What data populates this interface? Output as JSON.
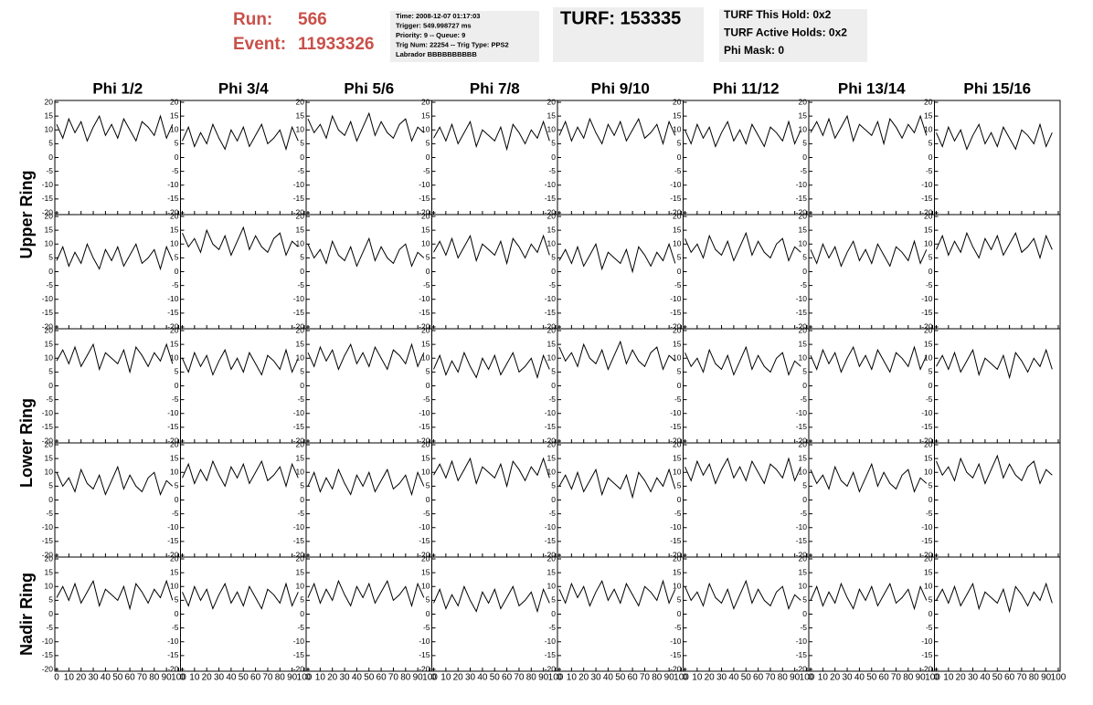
{
  "header": {
    "run_label": "Run:",
    "run": "566",
    "event_label": "Event:",
    "event": "11933326",
    "info": [
      "Time: 2008-12-07 01:17:03",
      "Trigger: 549.998727 ms",
      "Priority: 9 -- Queue: 9",
      "Trig Num: 22254 -- Trig Type: PPS2",
      "Labrador BBBBBBBBBB"
    ],
    "turf": "TURF: 153335",
    "turf_info": [
      "TURF This Hold: 0x2",
      "TURF Active Holds: 0x2",
      "Phi Mask: 0"
    ]
  },
  "chart_data": {
    "type": "line",
    "color": "#000000",
    "columns": [
      "Phi 1/2",
      "Phi 3/4",
      "Phi 5/6",
      "Phi 7/8",
      "Phi 9/10",
      "Phi 11/12",
      "Phi 13/14",
      "Phi 15/16"
    ],
    "row_labels": [
      "Upper Ring",
      "Lower Ring",
      "Nadir Ring"
    ],
    "xlim": [
      0,
      100
    ],
    "ylim": [
      -20,
      20
    ],
    "xticks": [
      0,
      10,
      20,
      30,
      40,
      50,
      60,
      70,
      80,
      90,
      100
    ],
    "yticks": [
      -20,
      -15,
      -10,
      -5,
      0,
      5,
      10,
      15,
      20
    ],
    "x": [
      0,
      5,
      10,
      15,
      20,
      25,
      30,
      35,
      40,
      45,
      50,
      55,
      60,
      65,
      70,
      75,
      80,
      85,
      90,
      95
    ],
    "panels": [
      [
        12,
        7,
        14,
        9,
        13,
        6,
        11,
        15,
        8,
        12,
        7,
        14,
        10,
        6,
        13,
        11,
        8,
        15,
        7,
        12
      ],
      [
        6,
        11,
        4,
        9,
        5,
        12,
        7,
        3,
        10,
        6,
        11,
        4,
        8,
        12,
        5,
        7,
        10,
        3,
        11,
        6
      ],
      [
        14,
        9,
        12,
        7,
        15,
        10,
        8,
        13,
        6,
        11,
        16,
        8,
        13,
        9,
        7,
        12,
        14,
        6,
        11,
        9
      ],
      [
        7,
        11,
        6,
        12,
        5,
        9,
        13,
        4,
        10,
        8,
        6,
        11,
        3,
        12,
        9,
        5,
        10,
        7,
        13,
        6
      ],
      [
        8,
        13,
        6,
        11,
        7,
        14,
        9,
        5,
        12,
        8,
        13,
        6,
        10,
        14,
        7,
        9,
        12,
        5,
        13,
        8
      ],
      [
        10,
        5,
        12,
        7,
        11,
        4,
        9,
        13,
        6,
        10,
        5,
        12,
        8,
        4,
        11,
        9,
        6,
        13,
        5,
        10
      ],
      [
        9,
        13,
        8,
        14,
        7,
        11,
        15,
        6,
        12,
        10,
        8,
        13,
        5,
        14,
        11,
        7,
        12,
        9,
        15,
        8
      ],
      [
        9,
        4,
        11,
        6,
        10,
        3,
        8,
        12,
        5,
        9,
        4,
        11,
        7,
        3,
        10,
        8,
        5,
        12,
        4,
        9
      ],
      [
        4,
        9,
        2,
        7,
        3,
        10,
        5,
        1,
        8,
        4,
        9,
        2,
        6,
        10,
        3,
        5,
        8,
        1,
        9,
        4
      ],
      [
        14,
        9,
        12,
        7,
        15,
        10,
        8,
        13,
        6,
        11,
        16,
        8,
        13,
        9,
        7,
        12,
        14,
        6,
        11,
        9
      ],
      [
        10,
        5,
        8,
        3,
        11,
        6,
        4,
        9,
        2,
        7,
        12,
        4,
        9,
        5,
        3,
        8,
        10,
        2,
        7,
        5
      ],
      [
        7,
        11,
        6,
        12,
        5,
        9,
        13,
        4,
        10,
        8,
        6,
        11,
        3,
        12,
        9,
        5,
        10,
        7,
        13,
        6
      ],
      [
        4,
        8,
        3,
        9,
        2,
        6,
        10,
        1,
        7,
        5,
        3,
        8,
        0,
        9,
        6,
        2,
        7,
        4,
        10,
        3
      ],
      [
        12,
        7,
        10,
        5,
        13,
        8,
        6,
        11,
        4,
        9,
        14,
        6,
        11,
        7,
        5,
        10,
        12,
        4,
        9,
        7
      ],
      [
        8,
        3,
        10,
        5,
        9,
        2,
        7,
        11,
        4,
        8,
        3,
        10,
        6,
        2,
        9,
        7,
        4,
        11,
        3,
        8
      ],
      [
        8,
        13,
        6,
        11,
        7,
        14,
        9,
        5,
        12,
        8,
        13,
        6,
        10,
        14,
        7,
        9,
        12,
        5,
        13,
        8
      ],
      [
        9,
        13,
        8,
        14,
        7,
        11,
        15,
        6,
        12,
        10,
        8,
        13,
        5,
        14,
        11,
        7,
        12,
        9,
        15,
        8
      ],
      [
        10,
        5,
        12,
        7,
        11,
        4,
        9,
        13,
        6,
        10,
        5,
        12,
        8,
        4,
        11,
        9,
        6,
        13,
        5,
        10
      ],
      [
        12,
        7,
        14,
        9,
        13,
        6,
        11,
        15,
        8,
        12,
        7,
        14,
        10,
        6,
        13,
        11,
        8,
        15,
        7,
        12
      ],
      [
        6,
        11,
        4,
        9,
        5,
        12,
        7,
        3,
        10,
        6,
        11,
        4,
        8,
        12,
        5,
        7,
        10,
        3,
        11,
        6
      ],
      [
        14,
        9,
        12,
        7,
        15,
        10,
        8,
        13,
        6,
        11,
        16,
        8,
        13,
        9,
        7,
        12,
        14,
        6,
        11,
        9
      ],
      [
        12,
        7,
        10,
        5,
        13,
        8,
        6,
        11,
        4,
        9,
        14,
        6,
        11,
        7,
        5,
        10,
        12,
        4,
        9,
        7
      ],
      [
        11,
        6,
        13,
        8,
        12,
        5,
        10,
        14,
        7,
        11,
        6,
        13,
        9,
        5,
        12,
        10,
        7,
        14,
        6,
        11
      ],
      [
        7,
        11,
        6,
        12,
        5,
        9,
        13,
        4,
        10,
        8,
        6,
        11,
        3,
        12,
        9,
        5,
        10,
        7,
        13,
        6
      ],
      [
        10,
        5,
        8,
        3,
        11,
        6,
        4,
        9,
        2,
        7,
        12,
        4,
        9,
        5,
        3,
        8,
        10,
        2,
        7,
        5
      ],
      [
        8,
        13,
        6,
        11,
        7,
        14,
        9,
        5,
        12,
        8,
        13,
        6,
        10,
        14,
        7,
        9,
        12,
        5,
        13,
        8
      ],
      [
        5,
        10,
        3,
        8,
        4,
        11,
        6,
        2,
        9,
        5,
        10,
        3,
        7,
        11,
        4,
        6,
        9,
        2,
        10,
        5
      ],
      [
        9,
        13,
        8,
        14,
        7,
        11,
        15,
        6,
        12,
        10,
        8,
        13,
        5,
        14,
        11,
        7,
        12,
        9,
        15,
        8
      ],
      [
        5,
        9,
        4,
        10,
        3,
        7,
        11,
        2,
        8,
        6,
        4,
        9,
        1,
        10,
        7,
        3,
        8,
        5,
        11,
        4
      ],
      [
        12,
        7,
        14,
        9,
        13,
        6,
        11,
        15,
        8,
        12,
        7,
        14,
        10,
        6,
        13,
        11,
        8,
        15,
        7,
        12
      ],
      [
        11,
        6,
        9,
        4,
        12,
        7,
        5,
        10,
        3,
        8,
        13,
        5,
        10,
        6,
        4,
        9,
        11,
        3,
        8,
        6
      ],
      [
        14,
        9,
        12,
        7,
        15,
        10,
        8,
        13,
        6,
        11,
        16,
        8,
        13,
        9,
        7,
        12,
        14,
        6,
        11,
        9
      ],
      [
        6,
        10,
        5,
        11,
        4,
        8,
        12,
        3,
        9,
        7,
        5,
        10,
        2,
        11,
        8,
        4,
        9,
        6,
        12,
        5
      ],
      [
        8,
        3,
        10,
        5,
        9,
        2,
        7,
        11,
        4,
        8,
        3,
        10,
        6,
        2,
        9,
        7,
        4,
        11,
        3,
        8
      ],
      [
        6,
        11,
        4,
        9,
        5,
        12,
        7,
        3,
        10,
        6,
        11,
        4,
        8,
        12,
        5,
        7,
        10,
        3,
        11,
        6
      ],
      [
        4,
        9,
        2,
        7,
        3,
        10,
        5,
        1,
        8,
        4,
        9,
        2,
        6,
        10,
        3,
        5,
        8,
        1,
        9,
        4
      ],
      [
        9,
        4,
        11,
        6,
        10,
        3,
        8,
        12,
        5,
        9,
        4,
        11,
        7,
        3,
        10,
        8,
        5,
        12,
        4,
        9
      ],
      [
        10,
        5,
        8,
        3,
        11,
        6,
        4,
        9,
        2,
        7,
        12,
        4,
        9,
        5,
        3,
        8,
        10,
        2,
        7,
        5
      ],
      [
        5,
        10,
        3,
        8,
        4,
        11,
        6,
        2,
        9,
        5,
        10,
        3,
        7,
        11,
        4,
        6,
        9,
        2,
        10,
        5
      ],
      [
        5,
        9,
        4,
        10,
        3,
        7,
        11,
        2,
        8,
        6,
        4,
        9,
        1,
        10,
        7,
        3,
        8,
        5,
        11,
        4
      ]
    ]
  }
}
